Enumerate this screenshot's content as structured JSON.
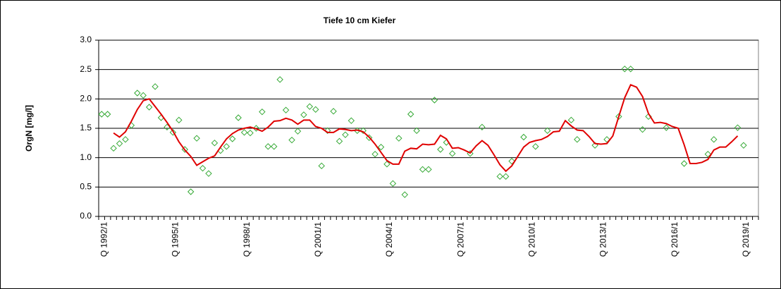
{
  "chart_data": {
    "type": "line",
    "title": "Tiefe  10 cm     Kiefer",
    "y_label": "OrgN [mg/l]",
    "categories": [
      "Q 1992/1",
      null,
      null,
      null,
      null,
      null,
      null,
      null,
      null,
      null,
      null,
      null,
      "Q 1995/1",
      null,
      null,
      null,
      null,
      null,
      null,
      null,
      null,
      null,
      null,
      null,
      "Q 1998/1",
      null,
      null,
      null,
      null,
      null,
      null,
      null,
      null,
      null,
      null,
      null,
      "Q 2001/1",
      null,
      null,
      null,
      null,
      null,
      null,
      null,
      null,
      null,
      null,
      null,
      "Q 2004/1",
      null,
      null,
      null,
      null,
      null,
      null,
      null,
      null,
      null,
      null,
      null,
      "Q 2007/1",
      null,
      null,
      null,
      null,
      null,
      null,
      null,
      null,
      null,
      null,
      null,
      "Q 2010/1",
      null,
      null,
      null,
      null,
      null,
      null,
      null,
      null,
      null,
      null,
      null,
      "Q 2013/1",
      null,
      null,
      null,
      null,
      null,
      null,
      null,
      null,
      null,
      null,
      null,
      "Q 2016/1",
      null,
      null,
      null,
      null,
      null,
      null,
      null,
      null,
      null,
      null,
      null,
      "Q 2019/1",
      null,
      null
    ],
    "series": [
      {
        "color": "#33a833",
        "marker": "diamond",
        "values": [
          1.74,
          1.74,
          1.16,
          1.24,
          1.31,
          1.55,
          2.1,
          2.06,
          1.86,
          2.21,
          1.68,
          1.52,
          1.43,
          1.64,
          1.14,
          0.42,
          1.33,
          0.82,
          0.73,
          1.25,
          1.12,
          1.19,
          1.32,
          1.68,
          1.43,
          1.42,
          1.5,
          1.78,
          1.19,
          1.19,
          2.33,
          1.81,
          1.3,
          1.45,
          1.73,
          1.87,
          1.82,
          0.86,
          1.46,
          1.79,
          1.28,
          1.39,
          1.63,
          1.46,
          1.46,
          1.34,
          1.06,
          1.18,
          0.89,
          0.56,
          1.33,
          0.37,
          1.74,
          1.46,
          0.8,
          0.8,
          1.98,
          1.14,
          1.26,
          1.07,
          null,
          null,
          1.07,
          null,
          1.52,
          null,
          null,
          0.68,
          0.68,
          0.94,
          null,
          1.35,
          null,
          1.19,
          null,
          1.46,
          null,
          null,
          null,
          1.64,
          1.31,
          null,
          null,
          1.21,
          null,
          1.31,
          null,
          1.7,
          2.51,
          2.51,
          null,
          1.48,
          1.7,
          null,
          null,
          1.51,
          null,
          null,
          0.9,
          null,
          null,
          null,
          1.06,
          1.31,
          null,
          null,
          null,
          1.51,
          1.21,
          null,
          null
        ]
      },
      {
        "color": "#e00000",
        "values": [
          null,
          null,
          1.42,
          1.35,
          1.44,
          1.62,
          1.82,
          1.97,
          2.0,
          1.87,
          1.74,
          1.6,
          1.45,
          1.27,
          1.13,
          1.02,
          0.87,
          0.93,
          0.99,
          1.03,
          1.18,
          1.32,
          1.41,
          1.47,
          1.5,
          1.52,
          1.49,
          1.45,
          1.52,
          1.62,
          1.63,
          1.67,
          1.64,
          1.57,
          1.64,
          1.64,
          1.53,
          1.5,
          1.43,
          1.43,
          1.49,
          1.48,
          1.46,
          1.47,
          1.44,
          1.35,
          1.23,
          1.09,
          0.95,
          0.89,
          0.89,
          1.11,
          1.16,
          1.15,
          1.23,
          1.22,
          1.23,
          1.38,
          1.32,
          1.16,
          1.17,
          1.13,
          1.08,
          1.2,
          1.29,
          1.21,
          1.05,
          0.88,
          0.77,
          0.86,
          1.02,
          1.18,
          1.26,
          1.29,
          1.31,
          1.36,
          1.44,
          1.45,
          1.63,
          1.54,
          1.47,
          1.46,
          1.36,
          1.24,
          1.23,
          1.24,
          1.37,
          1.7,
          2.02,
          2.24,
          2.2,
          2.04,
          1.75,
          1.59,
          1.6,
          1.58,
          1.53,
          1.5,
          1.22,
          0.9,
          0.9,
          0.92,
          0.97,
          1.13,
          1.18,
          1.18,
          1.27,
          1.37,
          null,
          null,
          null
        ]
      }
    ],
    "ylim": [
      0,
      3
    ],
    "yticks": [
      {
        "value": 0,
        "label": "0.0"
      },
      0.5,
      {
        "value": 1,
        "label": "1.0"
      },
      1.5,
      {
        "value": 2,
        "label": "2.0"
      },
      2.5,
      {
        "value": 3,
        "label": "3.0"
      }
    ],
    "grid": true
  }
}
